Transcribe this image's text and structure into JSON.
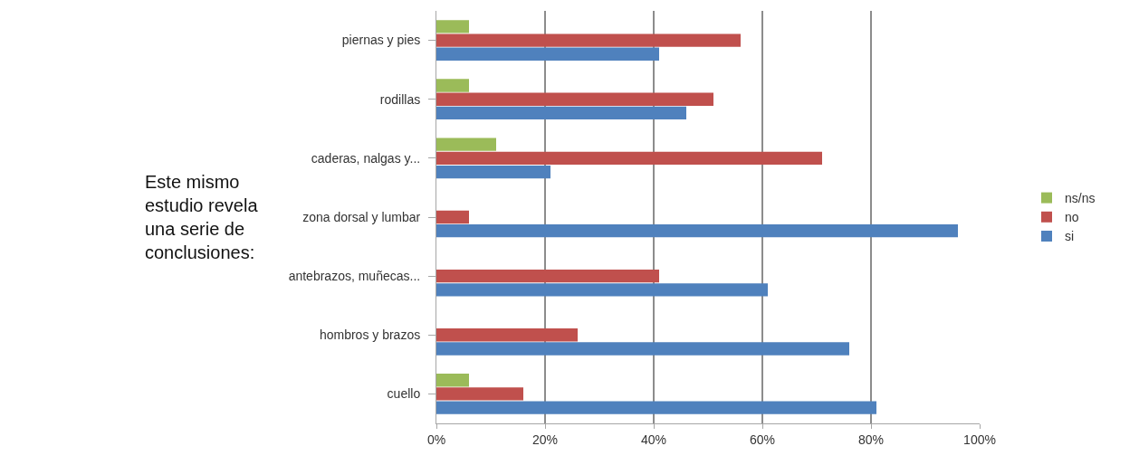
{
  "chart_data": {
    "type": "bar",
    "orientation": "horizontal",
    "categories": [
      "piernas y pies",
      "rodillas",
      "caderas, nalgas y...",
      "zona dorsal y lumbar",
      "antebrazos, muñecas...",
      "hombros y brazos",
      "cuello"
    ],
    "series": [
      {
        "name": "ns/ns",
        "color": "#9bbb59",
        "values": [
          6,
          6,
          11,
          0,
          0,
          0,
          6
        ]
      },
      {
        "name": "no",
        "color": "#c0504d",
        "values": [
          56,
          51,
          71,
          6,
          41,
          26,
          16
        ]
      },
      {
        "name": "si",
        "color": "#4f81bd",
        "values": [
          41,
          46,
          21,
          96,
          61,
          76,
          81
        ]
      }
    ],
    "xlim": [
      0,
      100
    ],
    "xticks": [
      {
        "value": 0,
        "label": "0%"
      },
      {
        "value": 20,
        "label": "20%"
      },
      {
        "value": 40,
        "label": "40%"
      },
      {
        "value": 60,
        "label": "60%"
      },
      {
        "value": 80,
        "label": "80%"
      },
      {
        "value": 100,
        "label": "100%"
      }
    ],
    "grid": "x",
    "legend": "right",
    "annotations": [
      "Este mismo\nestudio revela\nuna serie de\nconclusiones:"
    ]
  }
}
